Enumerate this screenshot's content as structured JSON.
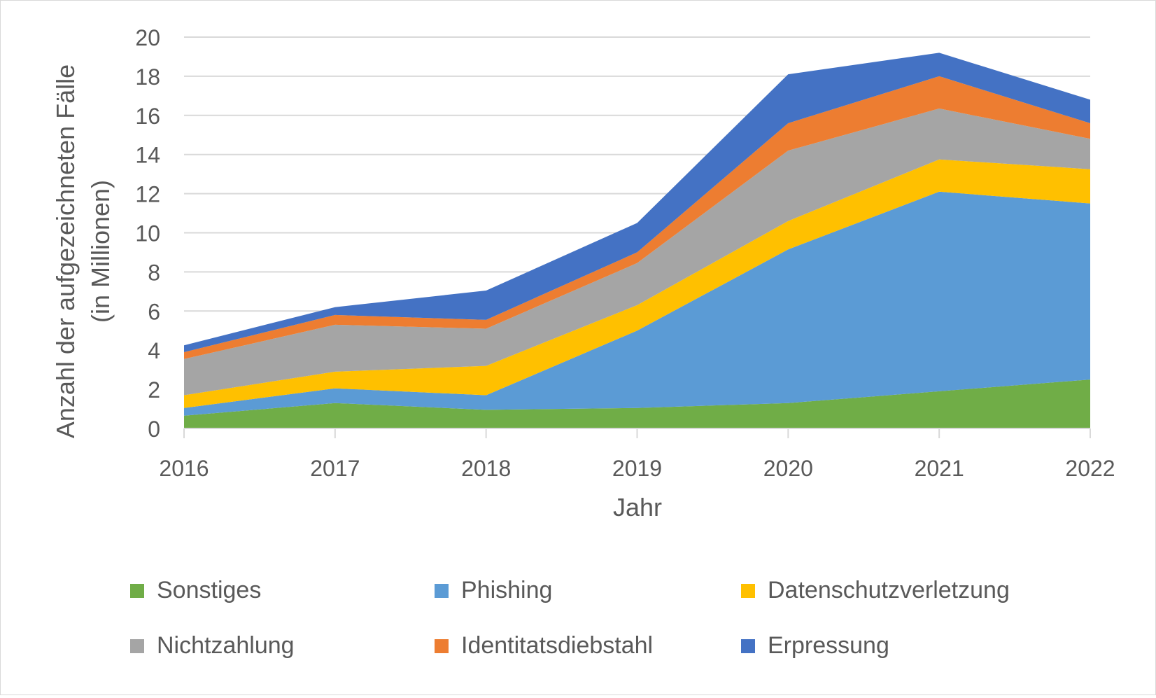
{
  "chart_data": {
    "type": "area",
    "stacked": true,
    "title": "",
    "xlabel": "Jahr",
    "ylabel_line1": "Anzahl der aufgezeichneten Fälle",
    "ylabel_line2": "(in Millionen)",
    "x": [
      "2016",
      "2017",
      "2018",
      "2019",
      "2020",
      "2021",
      "2022"
    ],
    "ylim": [
      0,
      20
    ],
    "yticks": [
      "0",
      "2",
      "4",
      "6",
      "8",
      "10",
      "12",
      "14",
      "16",
      "18",
      "20"
    ],
    "grid": true,
    "legend_position": "bottom",
    "series": [
      {
        "name": "Sonstiges",
        "color": "#70ad47",
        "values": [
          0.65,
          1.3,
          0.95,
          1.05,
          1.3,
          1.9,
          2.5
        ]
      },
      {
        "name": "Phishing",
        "color": "#5b9bd5",
        "values": [
          0.4,
          0.75,
          0.75,
          3.95,
          7.85,
          10.2,
          9.0
        ]
      },
      {
        "name": "Datenschutzverletzung",
        "color": "#ffc000",
        "values": [
          0.65,
          0.85,
          1.5,
          1.3,
          1.45,
          1.65,
          1.75
        ]
      },
      {
        "name": "Nichtzahlung",
        "color": "#a5a5a5",
        "values": [
          1.85,
          2.4,
          1.9,
          2.15,
          3.6,
          2.6,
          1.55
        ]
      },
      {
        "name": "Identitatsdiebstahl",
        "color": "#ed7d31",
        "values": [
          0.35,
          0.5,
          0.45,
          0.55,
          1.4,
          1.65,
          0.8
        ]
      },
      {
        "name": "Erpressung",
        "color": "#4472c4",
        "values": [
          0.35,
          0.4,
          1.5,
          1.5,
          2.5,
          1.2,
          1.2
        ]
      }
    ]
  }
}
